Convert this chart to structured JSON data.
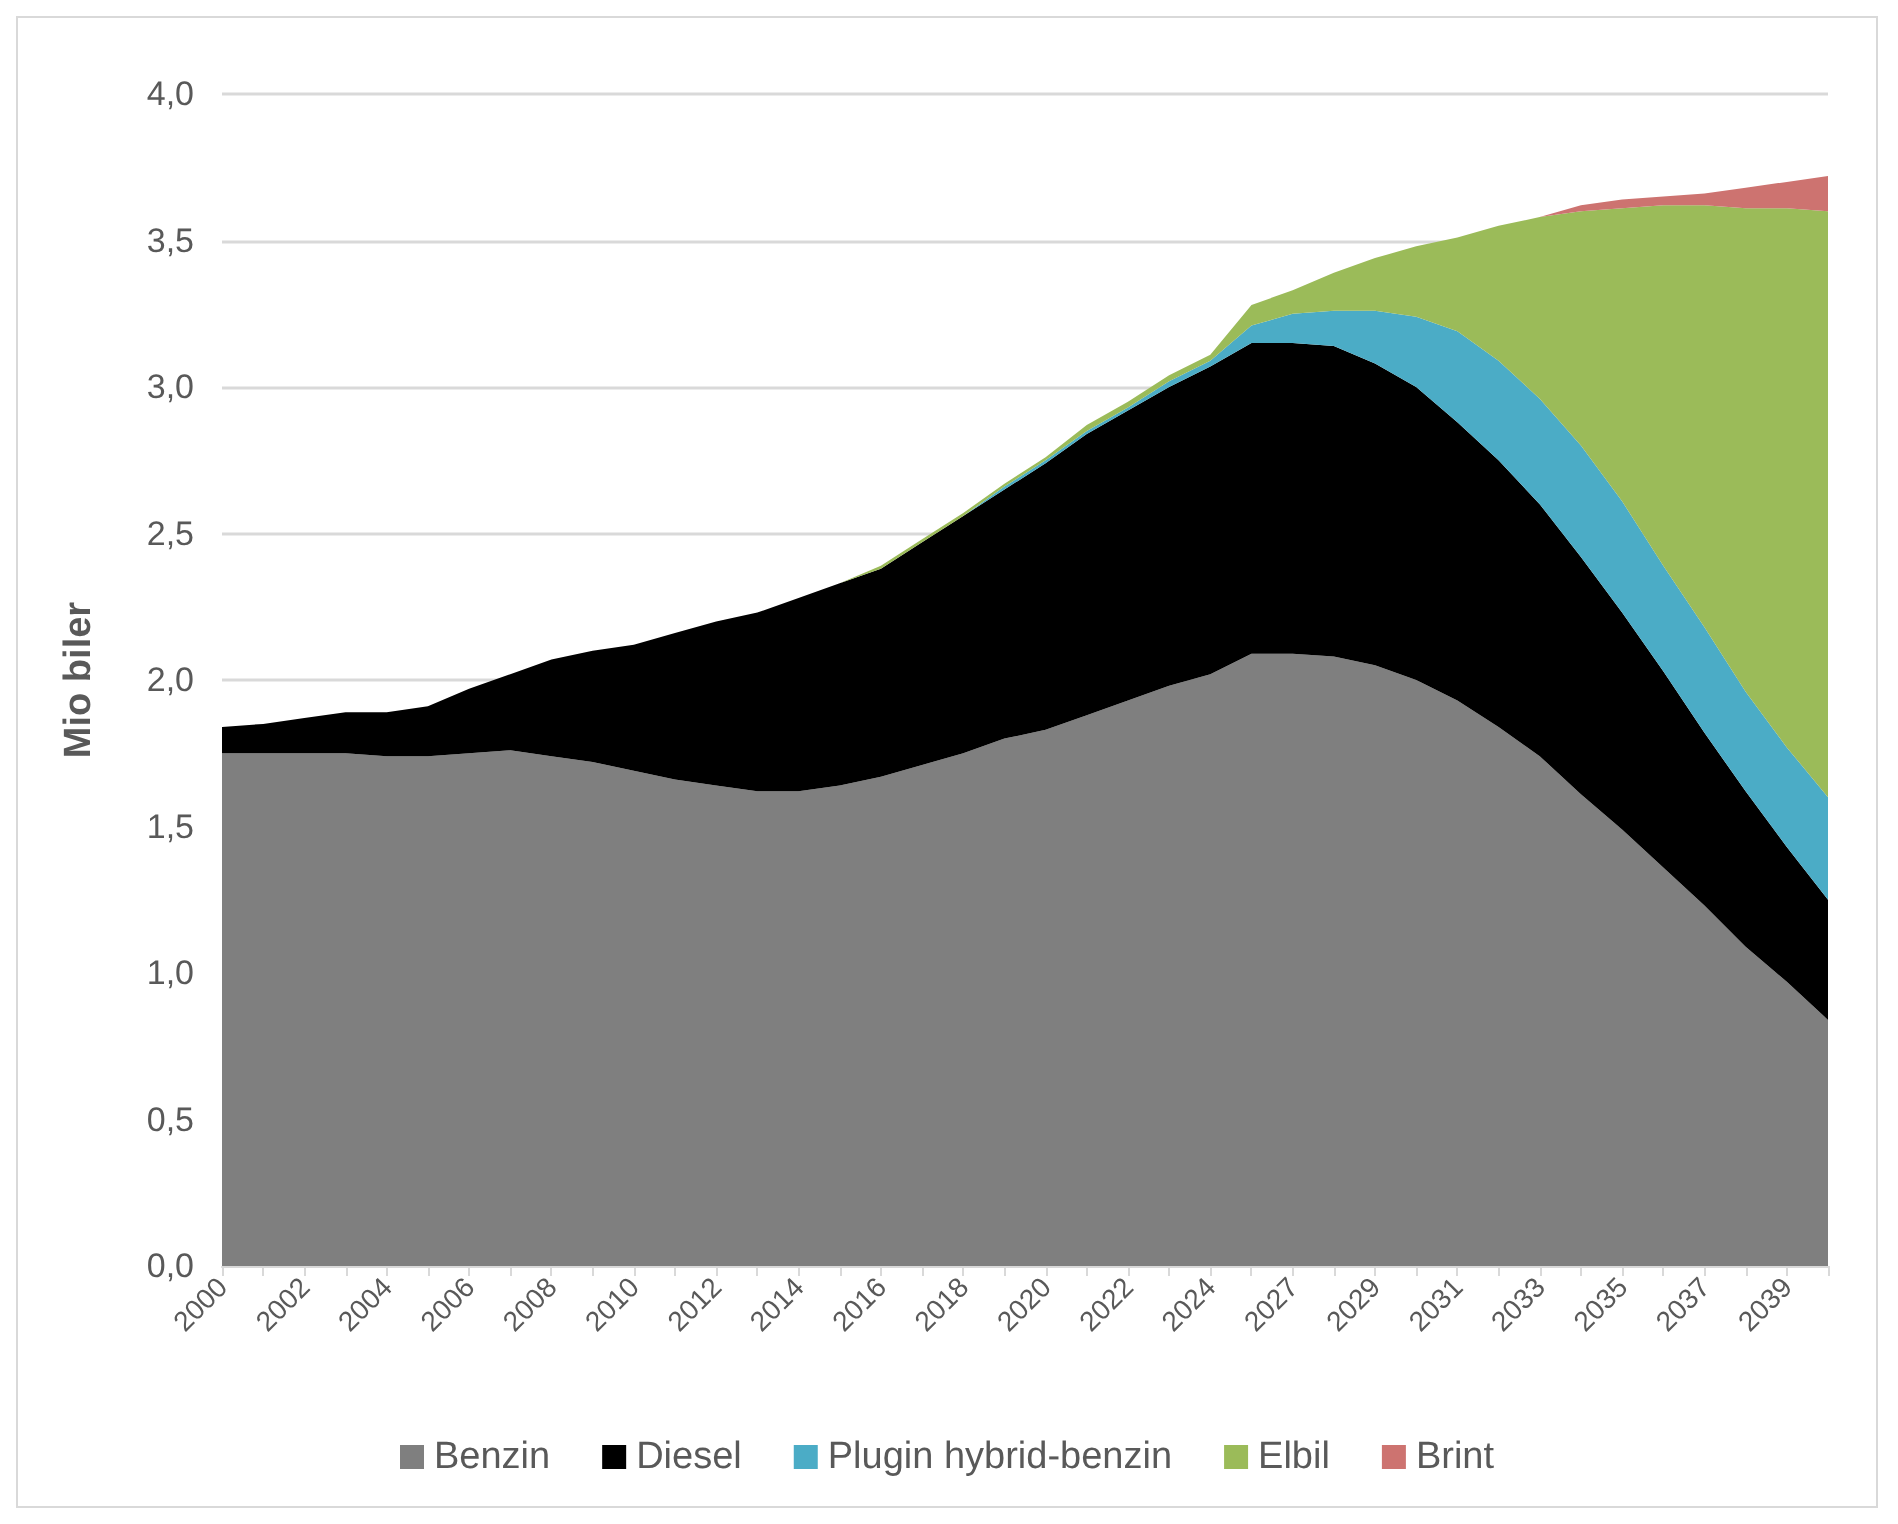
{
  "chart_data": {
    "type": "area",
    "stacked": true,
    "ylabel": "Mio biler",
    "categories": [
      "2000",
      null,
      "2002",
      null,
      "2004",
      null,
      "2006",
      null,
      "2008",
      null,
      "2010",
      null,
      "2012",
      null,
      "2014",
      null,
      "2016",
      null,
      "2018",
      null,
      "2020",
      null,
      "2022",
      null,
      "2024",
      null,
      "2027",
      null,
      "2029",
      null,
      "2031",
      null,
      "2033",
      null,
      "2035",
      null,
      "2037",
      null,
      "2039",
      null
    ],
    "series": [
      {
        "name": "Benzin",
        "color": "#7f7f7f",
        "values": [
          1.75,
          1.75,
          1.75,
          1.75,
          1.74,
          1.74,
          1.75,
          1.76,
          1.74,
          1.72,
          1.69,
          1.66,
          1.64,
          1.62,
          1.62,
          1.64,
          1.67,
          1.71,
          1.75,
          1.8,
          1.83,
          1.88,
          1.93,
          1.98,
          2.02,
          2.09,
          2.09,
          2.08,
          2.05,
          2.0,
          1.93,
          1.84,
          1.74,
          1.61,
          1.49,
          1.36,
          1.23,
          1.09,
          0.97,
          0.84
        ]
      },
      {
        "name": "Diesel",
        "color": "#000000",
        "values": [
          0.09,
          0.1,
          0.12,
          0.14,
          0.15,
          0.17,
          0.22,
          0.26,
          0.33,
          0.38,
          0.43,
          0.5,
          0.56,
          0.61,
          0.66,
          0.69,
          0.71,
          0.76,
          0.81,
          0.85,
          0.91,
          0.96,
          0.99,
          1.02,
          1.05,
          1.06,
          1.06,
          1.06,
          1.03,
          1.0,
          0.95,
          0.91,
          0.86,
          0.81,
          0.74,
          0.67,
          0.59,
          0.53,
          0.46,
          0.41
        ]
      },
      {
        "name": "Plugin hybrid-benzin",
        "color": "#4bacc6",
        "values": [
          0,
          0,
          0,
          0,
          0,
          0,
          0,
          0,
          0,
          0,
          0,
          0,
          0,
          0,
          0,
          0,
          0,
          0,
          0,
          0.01,
          0.01,
          0.01,
          0.01,
          0.02,
          0.02,
          0.06,
          0.1,
          0.12,
          0.18,
          0.24,
          0.31,
          0.34,
          0.36,
          0.38,
          0.38,
          0.36,
          0.36,
          0.34,
          0.34,
          0.35
        ]
      },
      {
        "name": "Elbil",
        "color": "#9bbb59",
        "values": [
          0,
          0,
          0,
          0,
          0,
          0,
          0,
          0,
          0,
          0,
          0,
          0,
          0,
          0,
          0,
          0,
          0.01,
          0.01,
          0.01,
          0.01,
          0.01,
          0.02,
          0.02,
          0.02,
          0.02,
          0.07,
          0.08,
          0.13,
          0.18,
          0.24,
          0.32,
          0.46,
          0.62,
          0.8,
          1.0,
          1.23,
          1.44,
          1.65,
          1.84,
          2.0
        ]
      },
      {
        "name": "Brint",
        "color": "#cd7370",
        "values": [
          0,
          0,
          0,
          0,
          0,
          0,
          0,
          0,
          0,
          0,
          0,
          0,
          0,
          0,
          0,
          0,
          0,
          0,
          0,
          0,
          0,
          0,
          0,
          0,
          0,
          0,
          0,
          0,
          0,
          0,
          0,
          0,
          0,
          0.02,
          0.03,
          0.03,
          0.04,
          0.07,
          0.09,
          0.12
        ]
      }
    ],
    "ylim": [
      0,
      4
    ],
    "yticks": [
      {
        "value": 0,
        "label": "0,0"
      },
      {
        "value": 0.5,
        "label": "0,5"
      },
      {
        "value": 1,
        "label": "1,0"
      },
      {
        "value": 1.5,
        "label": "1,5"
      },
      {
        "value": 2,
        "label": "2,0"
      },
      {
        "value": 2.5,
        "label": "2,5"
      },
      {
        "value": 3,
        "label": "3,0"
      },
      {
        "value": 3.5,
        "label": "3,5"
      },
      {
        "value": 4,
        "label": "4,0"
      }
    ],
    "grid": "y",
    "legend": "bottom"
  }
}
